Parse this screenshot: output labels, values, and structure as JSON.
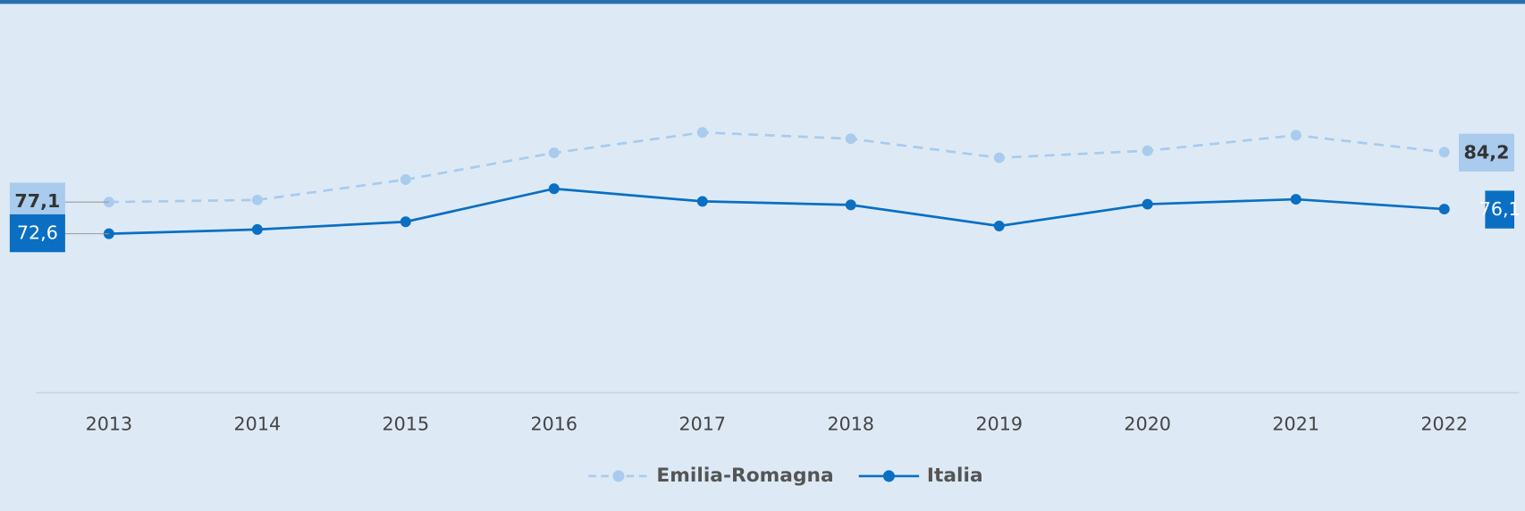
{
  "chart_data": {
    "type": "line",
    "categories": [
      "2013",
      "2014",
      "2015",
      "2016",
      "2017",
      "2018",
      "2019",
      "2020",
      "2021",
      "2022"
    ],
    "series": [
      {
        "name": "Emilia-Romagna",
        "color": "#a9cbed",
        "dashed": true,
        "values": [
          77.1,
          77.4,
          80.3,
          84.1,
          87.0,
          86.1,
          83.4,
          84.4,
          86.6,
          84.2
        ],
        "value_labels": [
          "77,1",
          null,
          null,
          null,
          null,
          null,
          null,
          null,
          null,
          "84,2"
        ]
      },
      {
        "name": "Italia",
        "color": "#0a6fc2",
        "dashed": false,
        "values": [
          72.6,
          73.2,
          74.3,
          79.0,
          77.2,
          76.7,
          73.7,
          76.8,
          77.5,
          76.1
        ],
        "value_labels": [
          "72,6",
          null,
          null,
          null,
          null,
          null,
          null,
          null,
          null,
          "76,1"
        ]
      }
    ],
    "ylim": [
      50,
      105
    ]
  }
}
